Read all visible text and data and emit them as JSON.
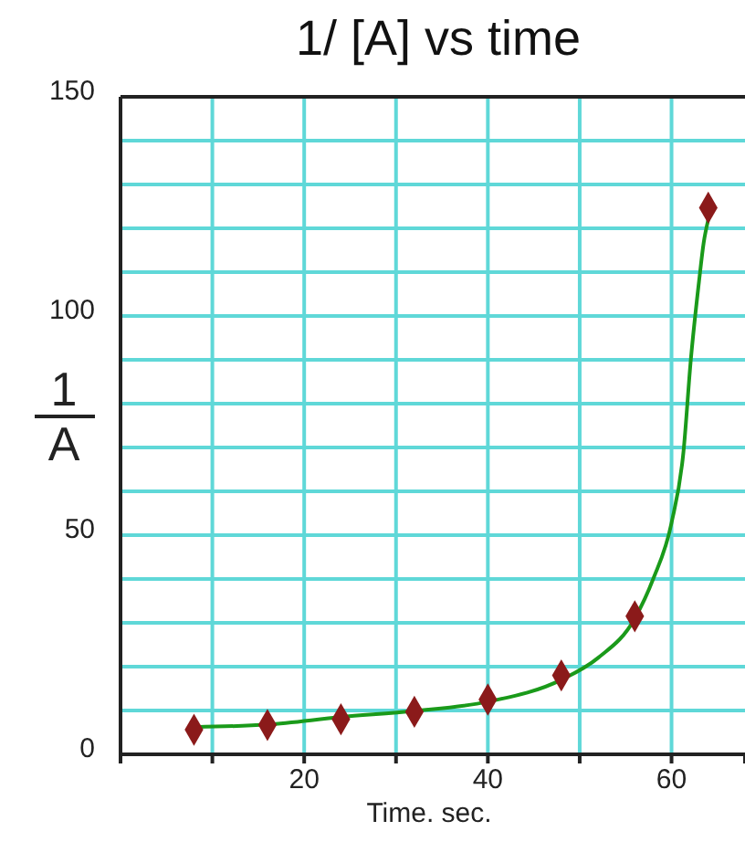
{
  "chart_data": {
    "type": "scatter",
    "title": "1/ [A] vs time",
    "xlabel": "Time. sec.",
    "ylabel": "1/A",
    "xlim": [
      0,
      68
    ],
    "xticks": [
      {
        "value": 10,
        "label": null
      },
      20,
      {
        "value": 30,
        "label": null
      },
      40,
      {
        "value": 50,
        "label": null
      },
      60
    ],
    "ylim": [
      0,
      150
    ],
    "yticks": [
      0,
      {
        "value": 10,
        "label": null
      },
      {
        "value": 20,
        "label": null
      },
      {
        "value": 30,
        "label": null
      },
      {
        "value": 40,
        "label": null
      },
      50,
      {
        "value": 60,
        "label": null
      },
      {
        "value": 70,
        "label": null
      },
      {
        "value": 80,
        "label": null
      },
      {
        "value": 90,
        "label": null
      },
      100,
      {
        "value": 110,
        "label": null
      },
      {
        "value": 120,
        "label": null
      },
      {
        "value": 130,
        "label": null
      },
      {
        "value": 140,
        "label": null
      },
      150
    ],
    "grid": true,
    "series": [
      {
        "type": "line",
        "color": "#1a9a1a",
        "marker": "none",
        "x": [
          8,
          16,
          24,
          32,
          40,
          48,
          52,
          56,
          58,
          60,
          61.3,
          62.1,
          63,
          63.5,
          64
        ],
        "values": [
          6.2,
          6.8,
          8.5,
          9.9,
          12,
          17,
          22,
          31,
          40,
          52.8,
          69,
          90,
          108,
          116.7,
          122
        ]
      },
      {
        "color": "#8b1a1a",
        "marker": "diamond",
        "x": [
          8,
          16,
          24,
          32,
          40,
          48,
          56,
          64
        ],
        "values": [
          5.6,
          6.7,
          8,
          9.7,
          12.5,
          18,
          31.5,
          124.7
        ]
      }
    ]
  }
}
